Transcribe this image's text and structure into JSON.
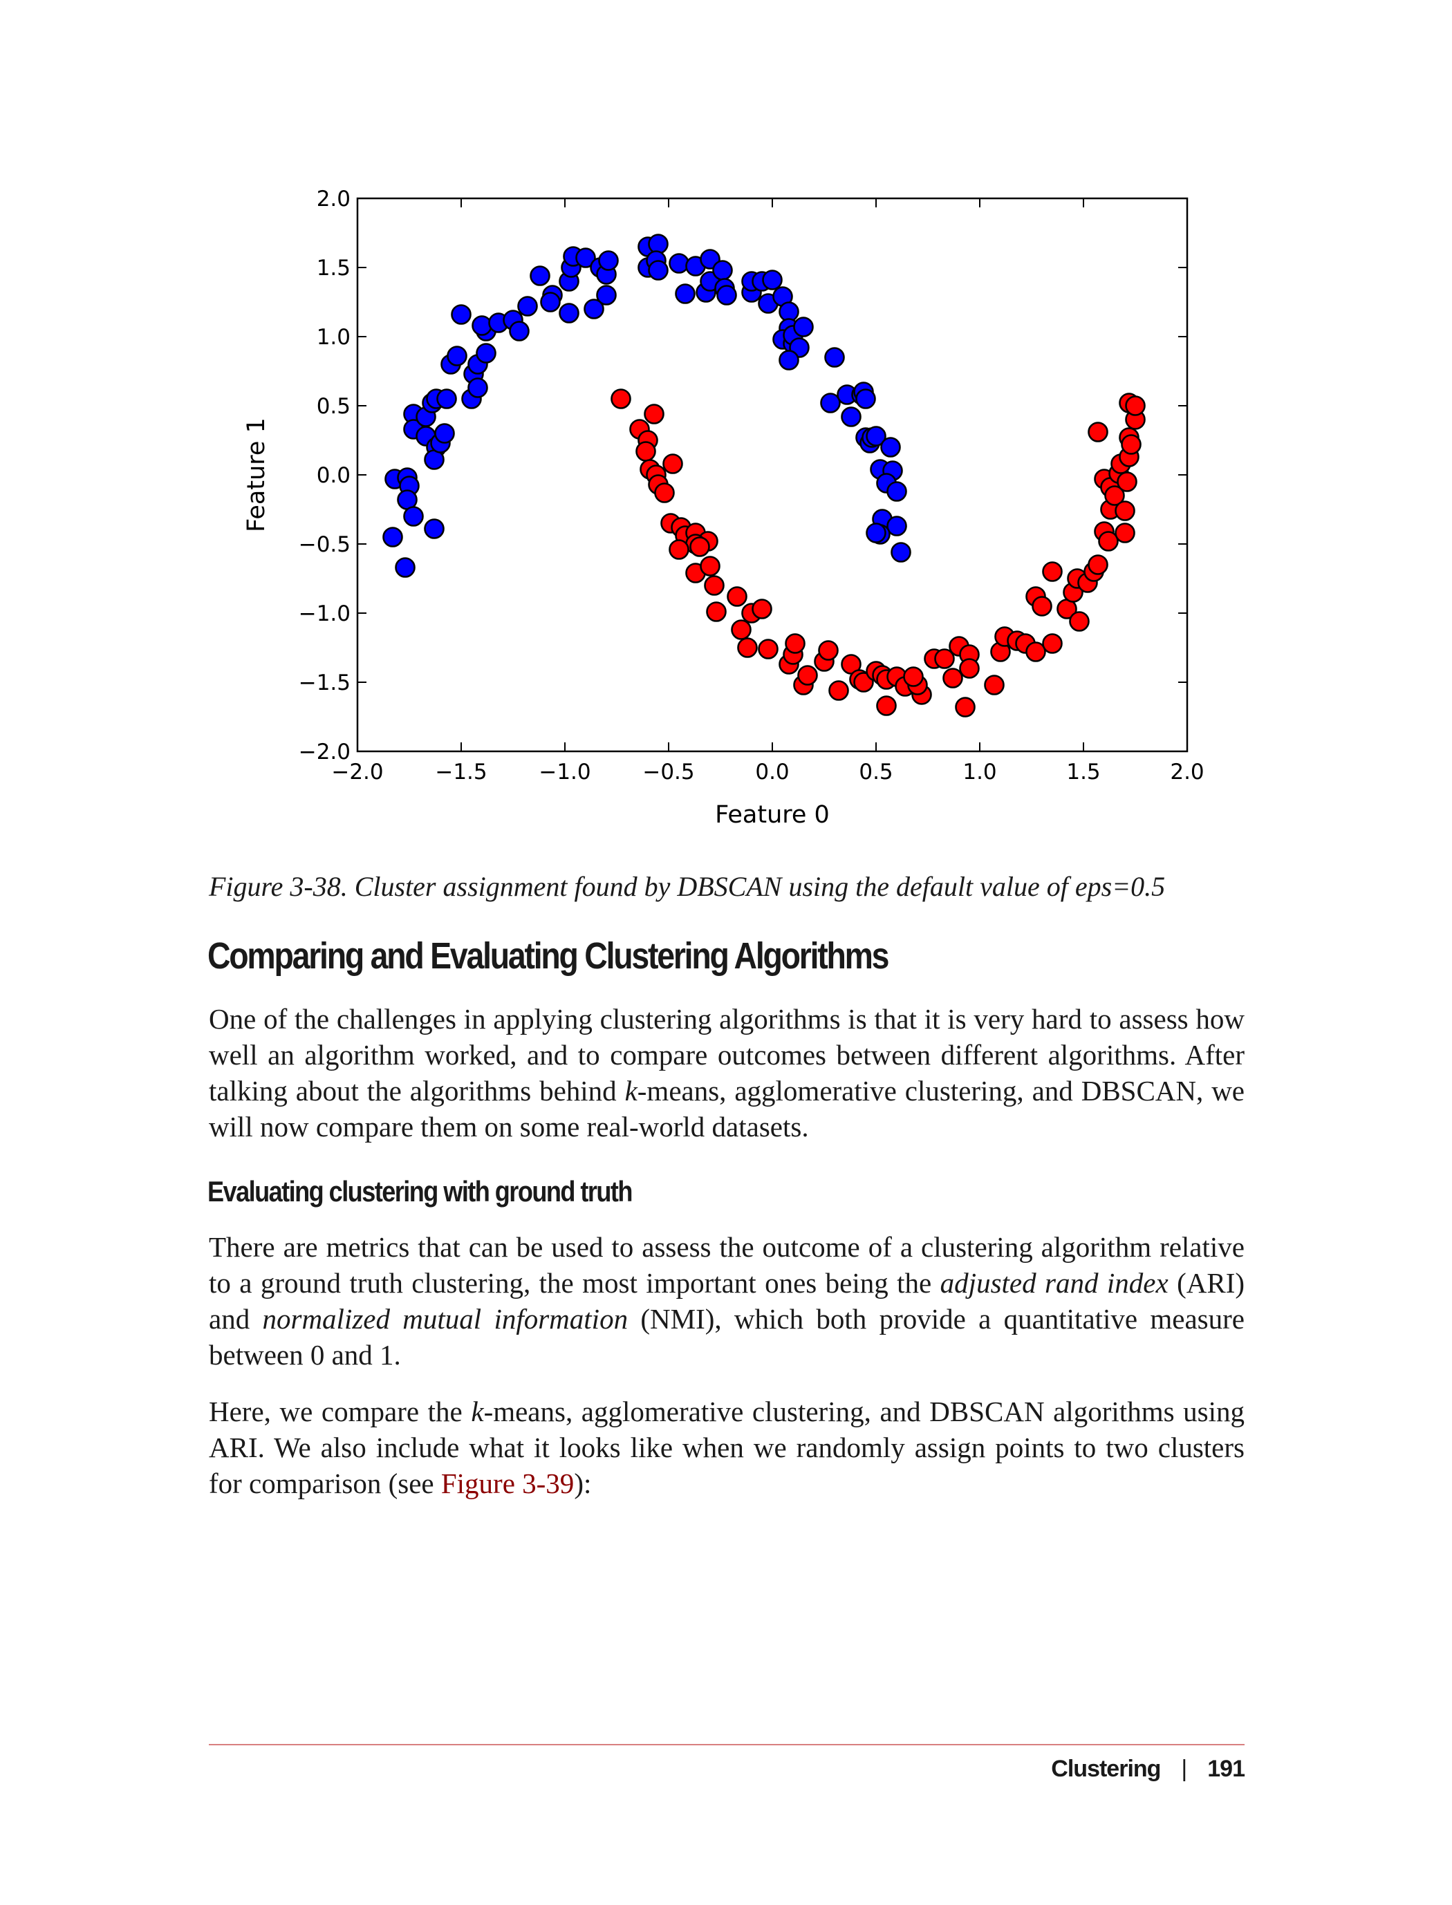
{
  "chart_data": {
    "type": "scatter",
    "xlabel": "Feature 0",
    "ylabel": "Feature 1",
    "xlim": [
      -2.0,
      2.0
    ],
    "ylim": [
      -2.0,
      2.0
    ],
    "xticks": [
      "−2.0",
      "−1.5",
      "−1.0",
      "−0.5",
      "0.0",
      "0.5",
      "1.0",
      "1.5",
      "2.0"
    ],
    "yticks": [
      "−2.0",
      "−1.5",
      "−1.0",
      "−0.5",
      "0.0",
      "0.5",
      "1.0",
      "1.5",
      "2.0"
    ],
    "grid": false,
    "series": [
      {
        "color": "#0000ff",
        "points": [
          [
            -1.83,
            -0.45
          ],
          [
            -1.77,
            -0.67
          ],
          [
            -1.82,
            -0.03
          ],
          [
            -1.76,
            -0.02
          ],
          [
            -1.75,
            -0.08
          ],
          [
            -1.76,
            -0.18
          ],
          [
            -1.73,
            -0.3
          ],
          [
            -1.63,
            -0.39
          ],
          [
            -1.73,
            0.44
          ],
          [
            -1.73,
            0.33
          ],
          [
            -1.67,
            0.42
          ],
          [
            -1.67,
            0.28
          ],
          [
            -1.64,
            0.52
          ],
          [
            -1.62,
            0.55
          ],
          [
            -1.62,
            0.2
          ],
          [
            -1.63,
            0.11
          ],
          [
            -1.6,
            0.23
          ],
          [
            -1.58,
            0.3
          ],
          [
            -1.57,
            0.55
          ],
          [
            -1.55,
            0.8
          ],
          [
            -1.52,
            0.86
          ],
          [
            -1.45,
            0.55
          ],
          [
            -1.44,
            0.73
          ],
          [
            -1.42,
            0.63
          ],
          [
            -1.42,
            0.8
          ],
          [
            -1.38,
            0.88
          ],
          [
            -1.38,
            1.04
          ],
          [
            -1.4,
            1.08
          ],
          [
            -1.5,
            1.16
          ],
          [
            -1.32,
            1.1
          ],
          [
            -1.25,
            1.12
          ],
          [
            -1.22,
            1.04
          ],
          [
            -1.18,
            1.22
          ],
          [
            -1.12,
            1.44
          ],
          [
            -1.06,
            1.3
          ],
          [
            -1.07,
            1.25
          ],
          [
            -0.98,
            1.17
          ],
          [
            -0.98,
            1.4
          ],
          [
            -0.97,
            1.5
          ],
          [
            -0.96,
            1.58
          ],
          [
            -0.9,
            1.57
          ],
          [
            -0.83,
            1.5
          ],
          [
            -0.8,
            1.45
          ],
          [
            -0.79,
            1.55
          ],
          [
            -0.8,
            1.3
          ],
          [
            -0.86,
            1.2
          ],
          [
            -0.6,
            1.65
          ],
          [
            -0.55,
            1.67
          ],
          [
            -0.6,
            1.5
          ],
          [
            -0.56,
            1.55
          ],
          [
            -0.55,
            1.48
          ],
          [
            -0.45,
            1.53
          ],
          [
            -0.42,
            1.31
          ],
          [
            -0.37,
            1.51
          ],
          [
            -0.3,
            1.56
          ],
          [
            -0.32,
            1.32
          ],
          [
            -0.3,
            1.4
          ],
          [
            -0.24,
            1.48
          ],
          [
            -0.23,
            1.35
          ],
          [
            -0.22,
            1.3
          ],
          [
            -0.1,
            1.32
          ],
          [
            -0.1,
            1.4
          ],
          [
            -0.05,
            1.4
          ],
          [
            0.0,
            1.41
          ],
          [
            -0.02,
            1.24
          ],
          [
            0.05,
            1.29
          ],
          [
            0.08,
            1.18
          ],
          [
            0.08,
            1.06
          ],
          [
            0.05,
            0.98
          ],
          [
            0.1,
            0.95
          ],
          [
            0.1,
            1.01
          ],
          [
            0.15,
            1.07
          ],
          [
            0.13,
            0.92
          ],
          [
            0.08,
            0.83
          ],
          [
            0.3,
            0.85
          ],
          [
            0.28,
            0.52
          ],
          [
            0.36,
            0.58
          ],
          [
            0.38,
            0.42
          ],
          [
            0.43,
            0.58
          ],
          [
            0.44,
            0.6
          ],
          [
            0.45,
            0.55
          ],
          [
            0.45,
            0.27
          ],
          [
            0.47,
            0.23
          ],
          [
            0.48,
            0.27
          ],
          [
            0.5,
            0.28
          ],
          [
            0.57,
            0.2
          ],
          [
            0.52,
            0.04
          ],
          [
            0.58,
            0.03
          ],
          [
            0.55,
            -0.06
          ],
          [
            0.6,
            -0.12
          ],
          [
            0.53,
            -0.32
          ],
          [
            0.6,
            -0.37
          ],
          [
            0.52,
            -0.43
          ],
          [
            0.5,
            -0.42
          ],
          [
            0.62,
            -0.56
          ]
        ]
      },
      {
        "color": "#ff0000",
        "points": [
          [
            -0.73,
            0.55
          ],
          [
            -0.57,
            0.44
          ],
          [
            -0.64,
            0.33
          ],
          [
            -0.6,
            0.25
          ],
          [
            -0.61,
            0.17
          ],
          [
            -0.59,
            0.04
          ],
          [
            -0.56,
            0.0
          ],
          [
            -0.48,
            0.08
          ],
          [
            -0.55,
            -0.07
          ],
          [
            -0.52,
            -0.13
          ],
          [
            -0.49,
            -0.35
          ],
          [
            -0.44,
            -0.38
          ],
          [
            -0.42,
            -0.44
          ],
          [
            -0.37,
            -0.42
          ],
          [
            -0.31,
            -0.48
          ],
          [
            -0.37,
            -0.5
          ],
          [
            -0.45,
            -0.54
          ],
          [
            -0.35,
            -0.52
          ],
          [
            -0.37,
            -0.71
          ],
          [
            -0.3,
            -0.66
          ],
          [
            -0.28,
            -0.8
          ],
          [
            -0.27,
            -0.99
          ],
          [
            -0.17,
            -0.88
          ],
          [
            -0.1,
            -1.0
          ],
          [
            -0.05,
            -0.97
          ],
          [
            -0.15,
            -1.12
          ],
          [
            -0.12,
            -1.25
          ],
          [
            -0.02,
            -1.26
          ],
          [
            0.08,
            -1.37
          ],
          [
            0.1,
            -1.3
          ],
          [
            0.11,
            -1.22
          ],
          [
            0.15,
            -1.52
          ],
          [
            0.17,
            -1.45
          ],
          [
            0.25,
            -1.35
          ],
          [
            0.27,
            -1.27
          ],
          [
            0.32,
            -1.56
          ],
          [
            0.38,
            -1.37
          ],
          [
            0.42,
            -1.48
          ],
          [
            0.44,
            -1.5
          ],
          [
            0.5,
            -1.42
          ],
          [
            0.53,
            -1.45
          ],
          [
            0.55,
            -1.48
          ],
          [
            0.55,
            -1.67
          ],
          [
            0.6,
            -1.46
          ],
          [
            0.64,
            -1.53
          ],
          [
            0.72,
            -1.59
          ],
          [
            0.7,
            -1.52
          ],
          [
            0.68,
            -1.46
          ],
          [
            0.78,
            -1.33
          ],
          [
            0.83,
            -1.33
          ],
          [
            0.87,
            -1.47
          ],
          [
            0.9,
            -1.24
          ],
          [
            0.95,
            -1.3
          ],
          [
            0.95,
            -1.4
          ],
          [
            0.93,
            -1.68
          ],
          [
            1.07,
            -1.52
          ],
          [
            1.1,
            -1.28
          ],
          [
            1.12,
            -1.17
          ],
          [
            1.18,
            -1.2
          ],
          [
            1.22,
            -1.22
          ],
          [
            1.27,
            -1.28
          ],
          [
            1.27,
            -0.88
          ],
          [
            1.3,
            -0.95
          ],
          [
            1.35,
            -0.7
          ],
          [
            1.35,
            -1.22
          ],
          [
            1.42,
            -0.97
          ],
          [
            1.45,
            -0.85
          ],
          [
            1.47,
            -0.75
          ],
          [
            1.48,
            -1.06
          ],
          [
            1.52,
            -0.78
          ],
          [
            1.55,
            -0.7
          ],
          [
            1.57,
            -0.65
          ],
          [
            1.57,
            0.31
          ],
          [
            1.6,
            -0.03
          ],
          [
            1.6,
            -0.41
          ],
          [
            1.62,
            -0.48
          ],
          [
            1.63,
            -0.09
          ],
          [
            1.63,
            -0.25
          ],
          [
            1.65,
            -0.15
          ],
          [
            1.67,
            0.01
          ],
          [
            1.68,
            0.08
          ],
          [
            1.7,
            -0.42
          ],
          [
            1.7,
            -0.26
          ],
          [
            1.71,
            -0.05
          ],
          [
            1.72,
            0.13
          ],
          [
            1.72,
            0.27
          ],
          [
            1.72,
            0.52
          ],
          [
            1.73,
            0.22
          ],
          [
            1.75,
            0.4
          ],
          [
            1.75,
            0.5
          ]
        ]
      }
    ]
  },
  "caption": "Figure 3-38. Cluster assignment found by DBSCAN using the default value of eps=0.5",
  "section_heading": "Comparing and Evaluating Clustering Algorithms",
  "para1": {
    "a": "One of the challenges in applying clustering algorithms is that it is very hard to assess how well an algorithm worked, and to compare outcomes between different algo­rithms. After talking about the algorithms behind ",
    "k": "k",
    "b": "-means, agglomerative clustering, and DBSCAN, we will now compare them on some real-world datasets."
  },
  "subsection_heading": "Evaluating clustering with ground truth",
  "para2": {
    "a": "There are metrics that can be used to assess the outcome of a clustering algorithm relative to a ground truth clustering, the most important ones being the ",
    "ari": "adjusted rand index",
    "b": " (ARI) and ",
    "nmi": "normalized mutual information",
    "c": " (NMI), which both provide a quanti­tative measure between 0 and 1."
  },
  "para3": {
    "a": "Here, we compare the ",
    "k": "k",
    "b": "-means, agglomerative clustering, and DBSCAN algorithms using ARI. We also include what it looks like when we randomly assign points to two clusters for comparison (see ",
    "link": "Figure 3-39",
    "c": "):"
  },
  "footer": {
    "chapter": "Clustering",
    "separator": "|",
    "page": "191"
  }
}
